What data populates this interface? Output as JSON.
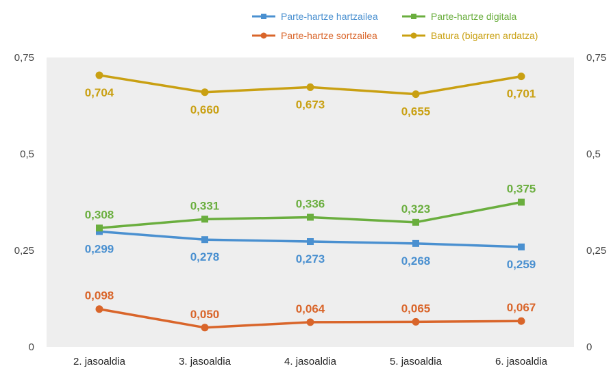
{
  "chart_data": {
    "type": "line",
    "title": "",
    "xlabel": "",
    "ylabel": "",
    "categories": [
      "2. jasoaldia",
      "3. jasoaldia",
      "4. jasoaldia",
      "5. jasoaldia",
      "6. jasoaldia"
    ],
    "ylim": [
      0,
      0.75
    ],
    "y_ticks": [
      "0",
      "0,25",
      "0,5",
      "0,75"
    ],
    "y2_ticks": [
      "0",
      "0,25",
      "0,5",
      "0,75"
    ],
    "grid": false,
    "plot_background": "#eeeeee",
    "legend_position": "top-right",
    "series": [
      {
        "name": "Parte-hartze hartzailea",
        "color": "#4a90d0",
        "marker": "square",
        "axis": "primary",
        "values": [
          0.299,
          0.278,
          0.273,
          0.268,
          0.259
        ],
        "labels": [
          "0,299",
          "0,278",
          "0,273",
          "0,268",
          "0,259"
        ],
        "label_position": "below"
      },
      {
        "name": "Parte-hartze digitala",
        "color": "#6aae3e",
        "marker": "square",
        "axis": "primary",
        "values": [
          0.308,
          0.331,
          0.336,
          0.323,
          0.375
        ],
        "labels": [
          "0,308",
          "0,331",
          "0,336",
          "0,323",
          "0,375"
        ],
        "label_position": "above"
      },
      {
        "name": "Parte-hartze sortzailea",
        "color": "#d9652a",
        "marker": "circle",
        "axis": "primary",
        "values": [
          0.098,
          0.05,
          0.064,
          0.065,
          0.067
        ],
        "labels": [
          "0,098",
          "0,050",
          "0,064",
          "0,065",
          "0,067"
        ],
        "label_position": "above"
      },
      {
        "name": "Batura (bigarren ardatza)",
        "color": "#c9a012",
        "marker": "circle",
        "axis": "secondary",
        "values": [
          0.704,
          0.66,
          0.673,
          0.655,
          0.701
        ],
        "labels": [
          "0,704",
          "0,660",
          "0,673",
          "0,655",
          "0,701"
        ],
        "label_position": "below"
      }
    ]
  }
}
